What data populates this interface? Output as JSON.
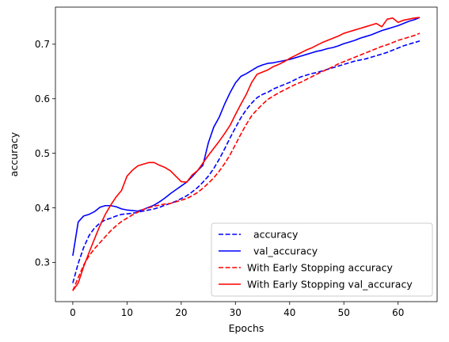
{
  "chart_data": {
    "type": "line",
    "title": "",
    "xlabel": "Epochs",
    "ylabel": "accuracy",
    "xlim": [
      -3.2,
      67.2
    ],
    "ylim": [
      0.228,
      0.768
    ],
    "xticks": [
      0,
      10,
      20,
      30,
      40,
      50,
      60
    ],
    "yticks": [
      0.3,
      0.4,
      0.5,
      0.6,
      0.7
    ],
    "grid": false,
    "legend_position": "lower-right",
    "series": [
      {
        "name": "  accuracy",
        "color": "#0000ff",
        "dash": "dashed",
        "x": [
          0,
          1,
          2,
          3,
          4,
          5,
          6,
          7,
          8,
          9,
          10,
          11,
          12,
          13,
          14,
          15,
          16,
          17,
          18,
          19,
          20,
          21,
          22,
          23,
          24,
          25,
          26,
          27,
          28,
          29,
          30,
          31,
          32,
          33,
          34,
          35,
          36,
          37,
          38,
          39,
          40,
          41,
          42,
          43,
          44,
          45,
          46,
          47,
          48,
          49,
          50,
          51,
          52,
          53,
          54,
          55,
          56,
          57,
          58,
          59,
          60,
          61,
          62,
          63,
          64
        ],
        "y": [
          0.262,
          0.298,
          0.327,
          0.349,
          0.363,
          0.372,
          0.378,
          0.381,
          0.385,
          0.388,
          0.389,
          0.39,
          0.392,
          0.394,
          0.396,
          0.398,
          0.401,
          0.405,
          0.408,
          0.412,
          0.417,
          0.422,
          0.429,
          0.437,
          0.447,
          0.458,
          0.472,
          0.489,
          0.508,
          0.528,
          0.547,
          0.565,
          0.58,
          0.592,
          0.602,
          0.608,
          0.612,
          0.618,
          0.622,
          0.626,
          0.63,
          0.635,
          0.64,
          0.643,
          0.646,
          0.648,
          0.651,
          0.654,
          0.657,
          0.66,
          0.663,
          0.666,
          0.669,
          0.671,
          0.673,
          0.676,
          0.679,
          0.682,
          0.685,
          0.689,
          0.693,
          0.697,
          0.7,
          0.703,
          0.706
        ]
      },
      {
        "name": "  val_accuracy",
        "color": "#0000ff",
        "dash": "solid",
        "x": [
          0,
          1,
          2,
          3,
          4,
          5,
          6,
          7,
          8,
          9,
          10,
          11,
          12,
          13,
          14,
          15,
          16,
          17,
          18,
          19,
          20,
          21,
          22,
          23,
          24,
          25,
          26,
          27,
          28,
          29,
          30,
          31,
          32,
          33,
          34,
          35,
          36,
          37,
          38,
          39,
          40,
          41,
          42,
          43,
          44,
          45,
          46,
          47,
          48,
          49,
          50,
          51,
          52,
          53,
          54,
          55,
          56,
          57,
          58,
          59,
          60,
          61,
          62,
          63,
          64
        ],
        "y": [
          0.312,
          0.374,
          0.385,
          0.388,
          0.393,
          0.401,
          0.404,
          0.404,
          0.402,
          0.398,
          0.396,
          0.395,
          0.394,
          0.397,
          0.401,
          0.405,
          0.411,
          0.418,
          0.426,
          0.433,
          0.44,
          0.447,
          0.457,
          0.468,
          0.478,
          0.519,
          0.548,
          0.566,
          0.59,
          0.611,
          0.629,
          0.641,
          0.646,
          0.652,
          0.658,
          0.662,
          0.665,
          0.666,
          0.668,
          0.67,
          0.672,
          0.675,
          0.678,
          0.681,
          0.684,
          0.687,
          0.689,
          0.692,
          0.694,
          0.697,
          0.701,
          0.704,
          0.707,
          0.711,
          0.714,
          0.717,
          0.721,
          0.725,
          0.728,
          0.731,
          0.734,
          0.738,
          0.742,
          0.745,
          0.749
        ]
      },
      {
        "name": "With Early Stopping accuracy",
        "color": "#ff0000",
        "dash": "dashed",
        "x": [
          0,
          1,
          2,
          3,
          4,
          5,
          6,
          7,
          8,
          9,
          10,
          11,
          12,
          13,
          14,
          15,
          16,
          17,
          18,
          19,
          20,
          21,
          22,
          23,
          24,
          25,
          26,
          27,
          28,
          29,
          30,
          31,
          32,
          33,
          34,
          35,
          36,
          37,
          38,
          39,
          40,
          41,
          42,
          43,
          44,
          45,
          46,
          47,
          48,
          49,
          50,
          51,
          52,
          53,
          54,
          55,
          56,
          57,
          58,
          59,
          60,
          61,
          62,
          63,
          64
        ],
        "y": [
          0.248,
          0.272,
          0.295,
          0.312,
          0.325,
          0.336,
          0.347,
          0.358,
          0.367,
          0.375,
          0.381,
          0.387,
          0.392,
          0.397,
          0.4,
          0.403,
          0.405,
          0.407,
          0.408,
          0.411,
          0.414,
          0.417,
          0.422,
          0.428,
          0.436,
          0.445,
          0.455,
          0.467,
          0.481,
          0.497,
          0.516,
          0.535,
          0.553,
          0.569,
          0.58,
          0.59,
          0.599,
          0.605,
          0.611,
          0.616,
          0.621,
          0.626,
          0.63,
          0.635,
          0.64,
          0.645,
          0.65,
          0.654,
          0.659,
          0.664,
          0.668,
          0.672,
          0.676,
          0.68,
          0.684,
          0.688,
          0.692,
          0.696,
          0.699,
          0.703,
          0.707,
          0.71,
          0.713,
          0.716,
          0.72
        ]
      },
      {
        "name": "With Early Stopping val_accuracy",
        "color": "#ff0000",
        "dash": "solid",
        "x": [
          0,
          1,
          2,
          3,
          4,
          5,
          6,
          7,
          8,
          9,
          10,
          11,
          12,
          13,
          14,
          15,
          16,
          17,
          18,
          19,
          20,
          21,
          22,
          23,
          24,
          25,
          26,
          27,
          28,
          29,
          30,
          31,
          32,
          33,
          34,
          35,
          36,
          37,
          38,
          39,
          40,
          41,
          42,
          43,
          44,
          45,
          46,
          47,
          48,
          49,
          50,
          51,
          52,
          53,
          54,
          55,
          56,
          57,
          58,
          59,
          60,
          61,
          62,
          63,
          64
        ],
        "y": [
          0.248,
          0.262,
          0.292,
          0.318,
          0.343,
          0.367,
          0.388,
          0.405,
          0.42,
          0.432,
          0.458,
          0.469,
          0.477,
          0.48,
          0.483,
          0.483,
          0.478,
          0.474,
          0.468,
          0.458,
          0.448,
          0.447,
          0.46,
          0.468,
          0.482,
          0.496,
          0.509,
          0.522,
          0.536,
          0.551,
          0.571,
          0.59,
          0.608,
          0.63,
          0.645,
          0.649,
          0.653,
          0.659,
          0.663,
          0.668,
          0.674,
          0.679,
          0.684,
          0.689,
          0.693,
          0.698,
          0.703,
          0.707,
          0.711,
          0.715,
          0.72,
          0.723,
          0.726,
          0.729,
          0.732,
          0.735,
          0.738,
          0.732,
          0.746,
          0.748,
          0.74,
          0.744,
          0.746,
          0.748,
          0.749
        ]
      }
    ]
  }
}
